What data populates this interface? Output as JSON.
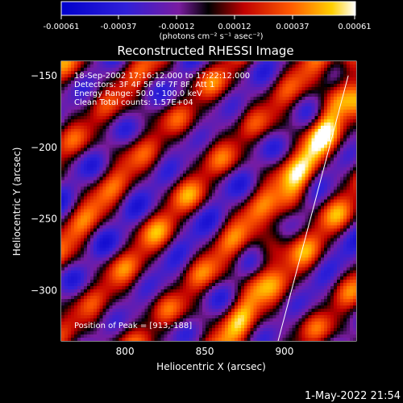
{
  "chart_data": {
    "type": "heatmap",
    "title": "Reconstructed RHESSI Image",
    "xlabel": "Heliocentric X (arcsec)",
    "ylabel": "Heliocentric Y (arcsec)",
    "xlim": [
      760,
      945
    ],
    "ylim": [
      -335,
      -140
    ],
    "x_ticks": [
      800,
      850,
      900
    ],
    "y_ticks": [
      -150,
      -200,
      -250,
      -300
    ],
    "colorbar": {
      "min": -0.00061,
      "max": 0.00061,
      "ticks": [
        "-0.00061",
        "-0.00037",
        "-0.00012",
        "0.00012",
        "0.00037",
        "0.00061"
      ],
      "label": "(photons cm⁻² s⁻¹ asec⁻²)"
    },
    "annotations": [
      "18-Sep-2002 17:16:12.000 to 17:22:12.000",
      "Detectors: 3F 4F 5F 6F 7F 8F, Att 1",
      "Energy Range: 50.0 - 100.0 keV",
      "Clean     Total counts: 1.57E+04"
    ],
    "peak_label": "Position of Peak = [913,-188]",
    "limb_line": {
      "x": [
        896,
        940
      ],
      "y": [
        -335,
        -150
      ]
    },
    "colors": {
      "background": "#000000",
      "text": "#ffffff",
      "limb": "#ffffff"
    }
  },
  "timestamp": "1-May-2022 21:54"
}
